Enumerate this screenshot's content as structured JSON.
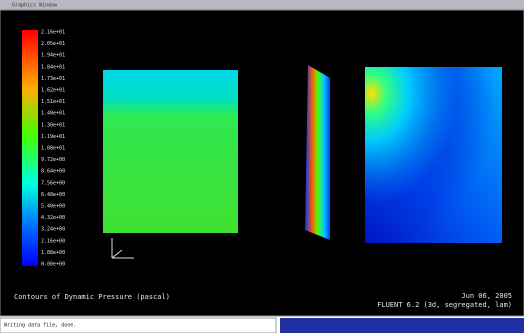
{
  "window": {
    "title": "Graphics Window"
  },
  "colorbar": {
    "labels": [
      "2.16e+01",
      "2.05e+01",
      "1.94e+01",
      "1.84e+01",
      "1.73e+01",
      "1.62e+01",
      "1.51e+01",
      "1.40e+01",
      "1.30e+01",
      "1.19e+01",
      "1.08e+01",
      "9.72e+00",
      "8.64e+00",
      "7.56e+00",
      "6.48e+00",
      "5.40e+00",
      "4.32e+00",
      "3.24e+00",
      "2.16e+00",
      "1.08e+00",
      "0.00e+00"
    ]
  },
  "caption": "Contours of Dynamic Pressure (pascal)",
  "date": "Jun 06, 2005",
  "solver": "FLUENT 6.2 (3d, segregated, lam)",
  "console": "Writing data file, done."
}
